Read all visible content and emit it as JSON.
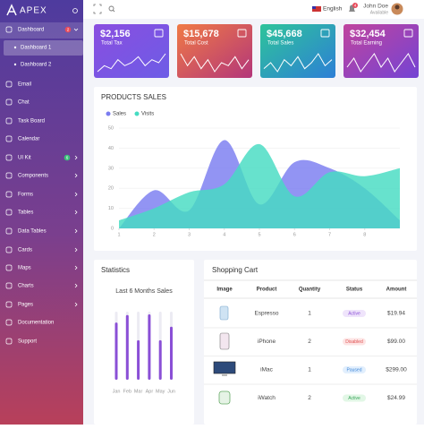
{
  "sidebar": {
    "brand": "APEX",
    "items": [
      {
        "label": "Dashboard",
        "badge": 2
      },
      {
        "label": "Dashboard 1"
      },
      {
        "label": "Dashboard 2"
      },
      {
        "label": "Email"
      },
      {
        "label": "Chat"
      },
      {
        "label": "Task Board"
      },
      {
        "label": "Calendar"
      },
      {
        "label": "UI Kit",
        "badge": 6
      },
      {
        "label": "Components"
      },
      {
        "label": "Forms"
      },
      {
        "label": "Tables"
      },
      {
        "label": "Data Tables"
      },
      {
        "label": "Cards"
      },
      {
        "label": "Maps"
      },
      {
        "label": "Charts"
      },
      {
        "label": "Pages"
      },
      {
        "label": "Documentation"
      },
      {
        "label": "Support"
      }
    ]
  },
  "topbar": {
    "language": "English",
    "notifications": 4,
    "user_name": "John Doe",
    "user_status": "Available"
  },
  "stat_cards": [
    {
      "value": "$2,156",
      "label": "Total Tax",
      "trend": [
        3,
        5,
        4,
        7,
        5,
        6,
        8,
        5,
        7,
        6,
        9
      ]
    },
    {
      "value": "$15,678",
      "label": "Total Cost",
      "trend": [
        8,
        4,
        7,
        3,
        6,
        2,
        5,
        4,
        7,
        3,
        6
      ]
    },
    {
      "value": "$45,668",
      "label": "Total Sales",
      "trend": [
        4,
        6,
        3,
        7,
        5,
        8,
        4,
        6,
        9,
        5,
        7
      ]
    },
    {
      "value": "$32,454",
      "label": "Total Earning",
      "trend": [
        5,
        7,
        4,
        6,
        8,
        5,
        7,
        4,
        6,
        8,
        5
      ]
    }
  ],
  "chart_data": [
    {
      "type": "area",
      "title": "PRODUCTS SALES",
      "x": [
        1,
        2,
        3,
        4,
        5,
        6,
        7,
        8,
        9
      ],
      "xlim": [
        1,
        9
      ],
      "xticks": [
        1,
        2,
        3,
        4,
        5,
        6,
        7,
        8
      ],
      "ylim": [
        0,
        50
      ],
      "yticks": [
        0,
        10,
        20,
        30,
        40,
        50
      ],
      "grid": true,
      "series": [
        {
          "name": "Sales",
          "color": "#7a7cf0",
          "values": [
            0,
            19,
            9,
            44,
            12,
            33,
            30,
            20,
            4
          ]
        },
        {
          "name": "Visits",
          "color": "#45dcc2",
          "values": [
            4,
            10,
            18,
            22,
            42,
            16,
            28,
            26,
            30
          ]
        }
      ]
    },
    {
      "type": "bar",
      "title": "Statistics",
      "subtitle": "Last 6 Months Sales",
      "categories": [
        "Jan",
        "Feb",
        "Mar",
        "Apr",
        "May",
        "Jun"
      ],
      "values": [
        84,
        95,
        58,
        96,
        58,
        78
      ],
      "ylim": [
        0,
        100
      ],
      "color": "#8a4fd6"
    }
  ],
  "cart": {
    "title": "Shopping Cart",
    "headers": [
      "Image",
      "Product",
      "Quantity",
      "Status",
      "Amount"
    ],
    "rows": [
      {
        "product": "Espresso",
        "quantity": 1,
        "status": "Active",
        "amount": "$19.94"
      },
      {
        "product": "iPhone",
        "quantity": 2,
        "status": "Disabled",
        "amount": "$99.00"
      },
      {
        "product": "iMac",
        "quantity": 1,
        "status": "Paused",
        "amount": "$299.00"
      },
      {
        "product": "iWatch",
        "quantity": 2,
        "status": "Active",
        "amount": "$24.99"
      }
    ]
  }
}
